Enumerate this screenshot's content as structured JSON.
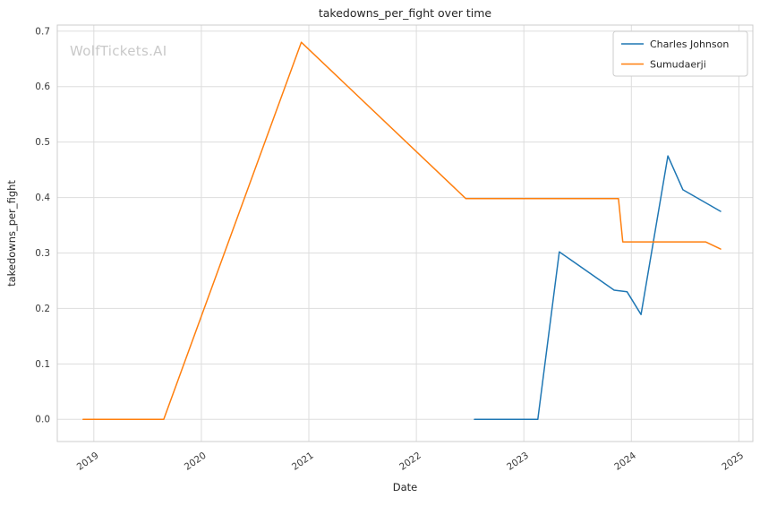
{
  "watermark": "WolfTickets.AI",
  "chart_data": {
    "type": "line",
    "title": "takedowns_per_fight over time",
    "xlabel": "Date",
    "ylabel": "takedowns_per_fight",
    "xlim": [
      2018.66,
      2025.13
    ],
    "ylim": [
      -0.04,
      0.711
    ],
    "grid": true,
    "grid_color": "#dddddd",
    "plot_border_color": "#cccccc",
    "background": "#ffffff",
    "xticks": [
      2019,
      2020,
      2021,
      2022,
      2023,
      2024,
      2025
    ],
    "xtick_labels": [
      "2019",
      "2020",
      "2021",
      "2022",
      "2023",
      "2024",
      "2025"
    ],
    "yticks": [
      0.0,
      0.1,
      0.2,
      0.3,
      0.4,
      0.5,
      0.6,
      0.7
    ],
    "ytick_labels": [
      "0.0",
      "0.1",
      "0.2",
      "0.3",
      "0.4",
      "0.5",
      "0.6",
      "0.7"
    ],
    "legend": {
      "position": "upper right",
      "entries": [
        "Charles Johnson",
        "Sumudaerji"
      ]
    },
    "series": [
      {
        "name": "Charles Johnson",
        "color": "#1f77b4",
        "x": [
          2022.54,
          2023.13,
          2023.33,
          2023.84,
          2023.96,
          2024.09,
          2024.34,
          2024.48,
          2024.83
        ],
        "y": [
          0.0,
          0.0,
          0.302,
          0.233,
          0.23,
          0.189,
          0.475,
          0.414,
          0.375
        ]
      },
      {
        "name": "Sumudaerji",
        "color": "#ff7f0e",
        "x": [
          2018.9,
          2019.65,
          2020.93,
          2022.46,
          2023.88,
          2023.92,
          2024.69,
          2024.83
        ],
        "y": [
          0.0,
          0.0,
          0.68,
          0.398,
          0.398,
          0.32,
          0.32,
          0.307
        ]
      }
    ]
  }
}
